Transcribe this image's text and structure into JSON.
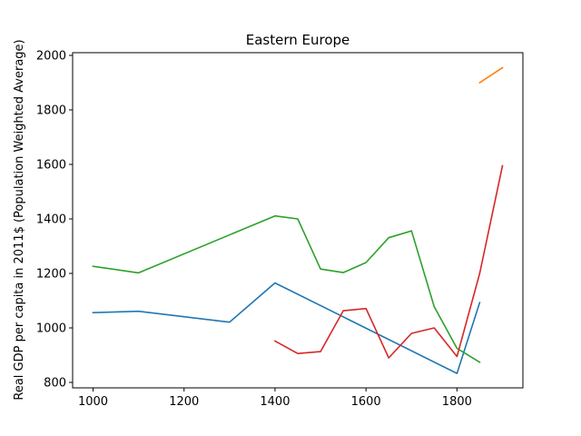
{
  "chart_data": {
    "type": "line",
    "title": "Eastern Europe",
    "xlabel": "",
    "ylabel": "Real GDP per capita in 2011$ (Population Weighted Average)",
    "xlim": [
      955,
      1945
    ],
    "ylim": [
      780,
      2010
    ],
    "xticks": [
      1000,
      1200,
      1400,
      1600,
      1800
    ],
    "yticks": [
      800,
      1000,
      1200,
      1400,
      1600,
      1800,
      2000
    ],
    "grid": false,
    "legend": "none",
    "series": [
      {
        "color": "#1f77b4",
        "x": [
          1000,
          1100,
          1300,
          1400,
          1800,
          1850
        ],
        "y": [
          1056,
          1061,
          1021,
          1165,
          833,
          1093
        ]
      },
      {
        "color": "#ff7f0e",
        "x": [
          1850,
          1900
        ],
        "y": [
          1900,
          1955
        ]
      },
      {
        "color": "#2ca02c",
        "x": [
          1000,
          1100,
          1400,
          1450,
          1500,
          1550,
          1600,
          1650,
          1700,
          1750,
          1800,
          1850
        ],
        "y": [
          1226,
          1202,
          1411,
          1400,
          1216,
          1203,
          1240,
          1331,
          1356,
          1078,
          925,
          874
        ]
      },
      {
        "color": "#d62728",
        "x": [
          1400,
          1450,
          1500,
          1550,
          1600,
          1650,
          1700,
          1750,
          1800,
          1850,
          1900
        ],
        "y": [
          952,
          906,
          913,
          1063,
          1071,
          890,
          980,
          1000,
          895,
          1200,
          1595
        ]
      }
    ]
  }
}
